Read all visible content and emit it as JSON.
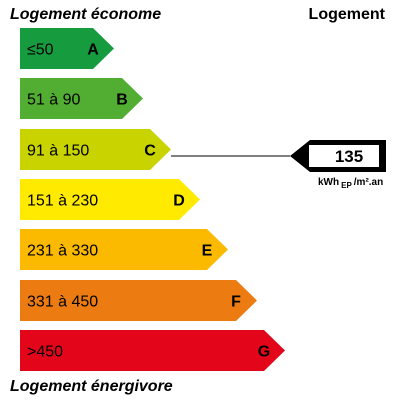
{
  "header": {
    "left": "Logement économe",
    "right": "Logement"
  },
  "classes": [
    {
      "range": "≤50",
      "letter": "A",
      "color": "#169b3e"
    },
    {
      "range": "51 à 90",
      "letter": "B",
      "color": "#52ae32"
    },
    {
      "range": "91 à 150",
      "letter": "C",
      "color": "#c8d300"
    },
    {
      "range": "151 à 230",
      "letter": "D",
      "color": "#ffea00"
    },
    {
      "range": "231 à 330",
      "letter": "E",
      "color": "#fbb900"
    },
    {
      "range": "331 à 450",
      "letter": "F",
      "color": "#ec7c11"
    },
    {
      "range": ">450",
      "letter": "G",
      "color": "#e3061a"
    }
  ],
  "indicator": {
    "value": "135",
    "unit": "kWh",
    "unit_sub": "EP",
    "unit_suffix": "/m².an",
    "class_index": 2
  },
  "footer": "Logement énergivore"
}
